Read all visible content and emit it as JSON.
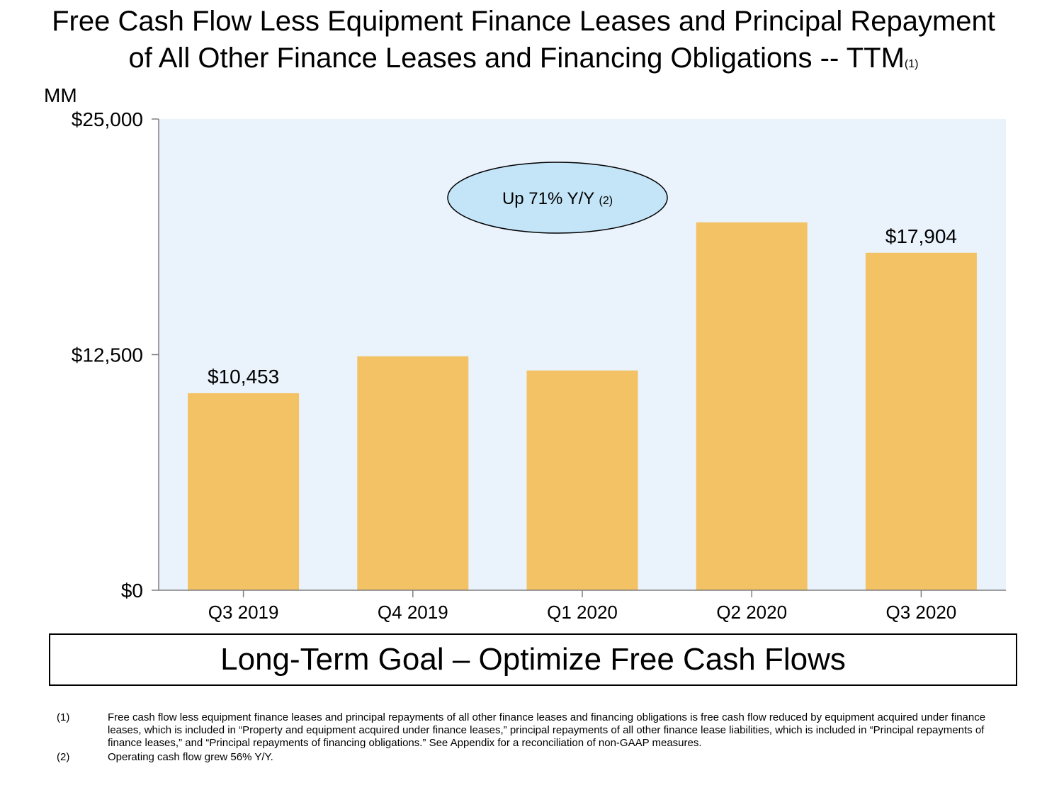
{
  "title": {
    "line1": "Free Cash Flow Less Equipment Finance Leases and Principal Repayment",
    "line2": "of All Other Finance Leases and Financing Obligations -- TTM",
    "note_ref": "(1)"
  },
  "chart_data": {
    "type": "bar",
    "ylabel": "MM",
    "categories": [
      "Q3 2019",
      "Q4 2019",
      "Q1 2020",
      "Q2 2020",
      "Q3 2020"
    ],
    "values": [
      10453,
      12410,
      11660,
      19520,
      17904
    ],
    "data_labels": [
      "$10,453",
      "",
      "",
      "",
      "$17,904"
    ],
    "ylim": [
      0,
      25000
    ],
    "yticks": [
      0,
      12500,
      25000
    ],
    "ytick_labels": [
      "$0",
      "$12,500",
      "$25,000"
    ],
    "annotation": {
      "text": "Up 71% Y/Y",
      "note_ref": "(2)"
    },
    "colors": {
      "bar": "#f2c264",
      "plot_bg": "#eaf3fc",
      "annotation_fill": "#c4e5f8",
      "axis": "#7f7f7f"
    }
  },
  "goal_box": {
    "text": "Long-Term Goal – Optimize Free Cash Flows"
  },
  "footnotes": [
    {
      "num": "(1)",
      "text": "Free cash flow less equipment finance leases and principal repayments of all other finance leases and financing obligations is free cash flow reduced by equipment acquired under finance leases, which is included in “Property and equipment acquired under finance leases,” principal repayments of all other finance lease liabilities, which is included in “Principal repayments of finance leases,” and “Principal repayments of financing obligations.” See Appendix for a reconciliation of non-GAAP measures."
    },
    {
      "num": "(2)",
      "text": "Operating cash flow grew 56% Y/Y."
    }
  ]
}
